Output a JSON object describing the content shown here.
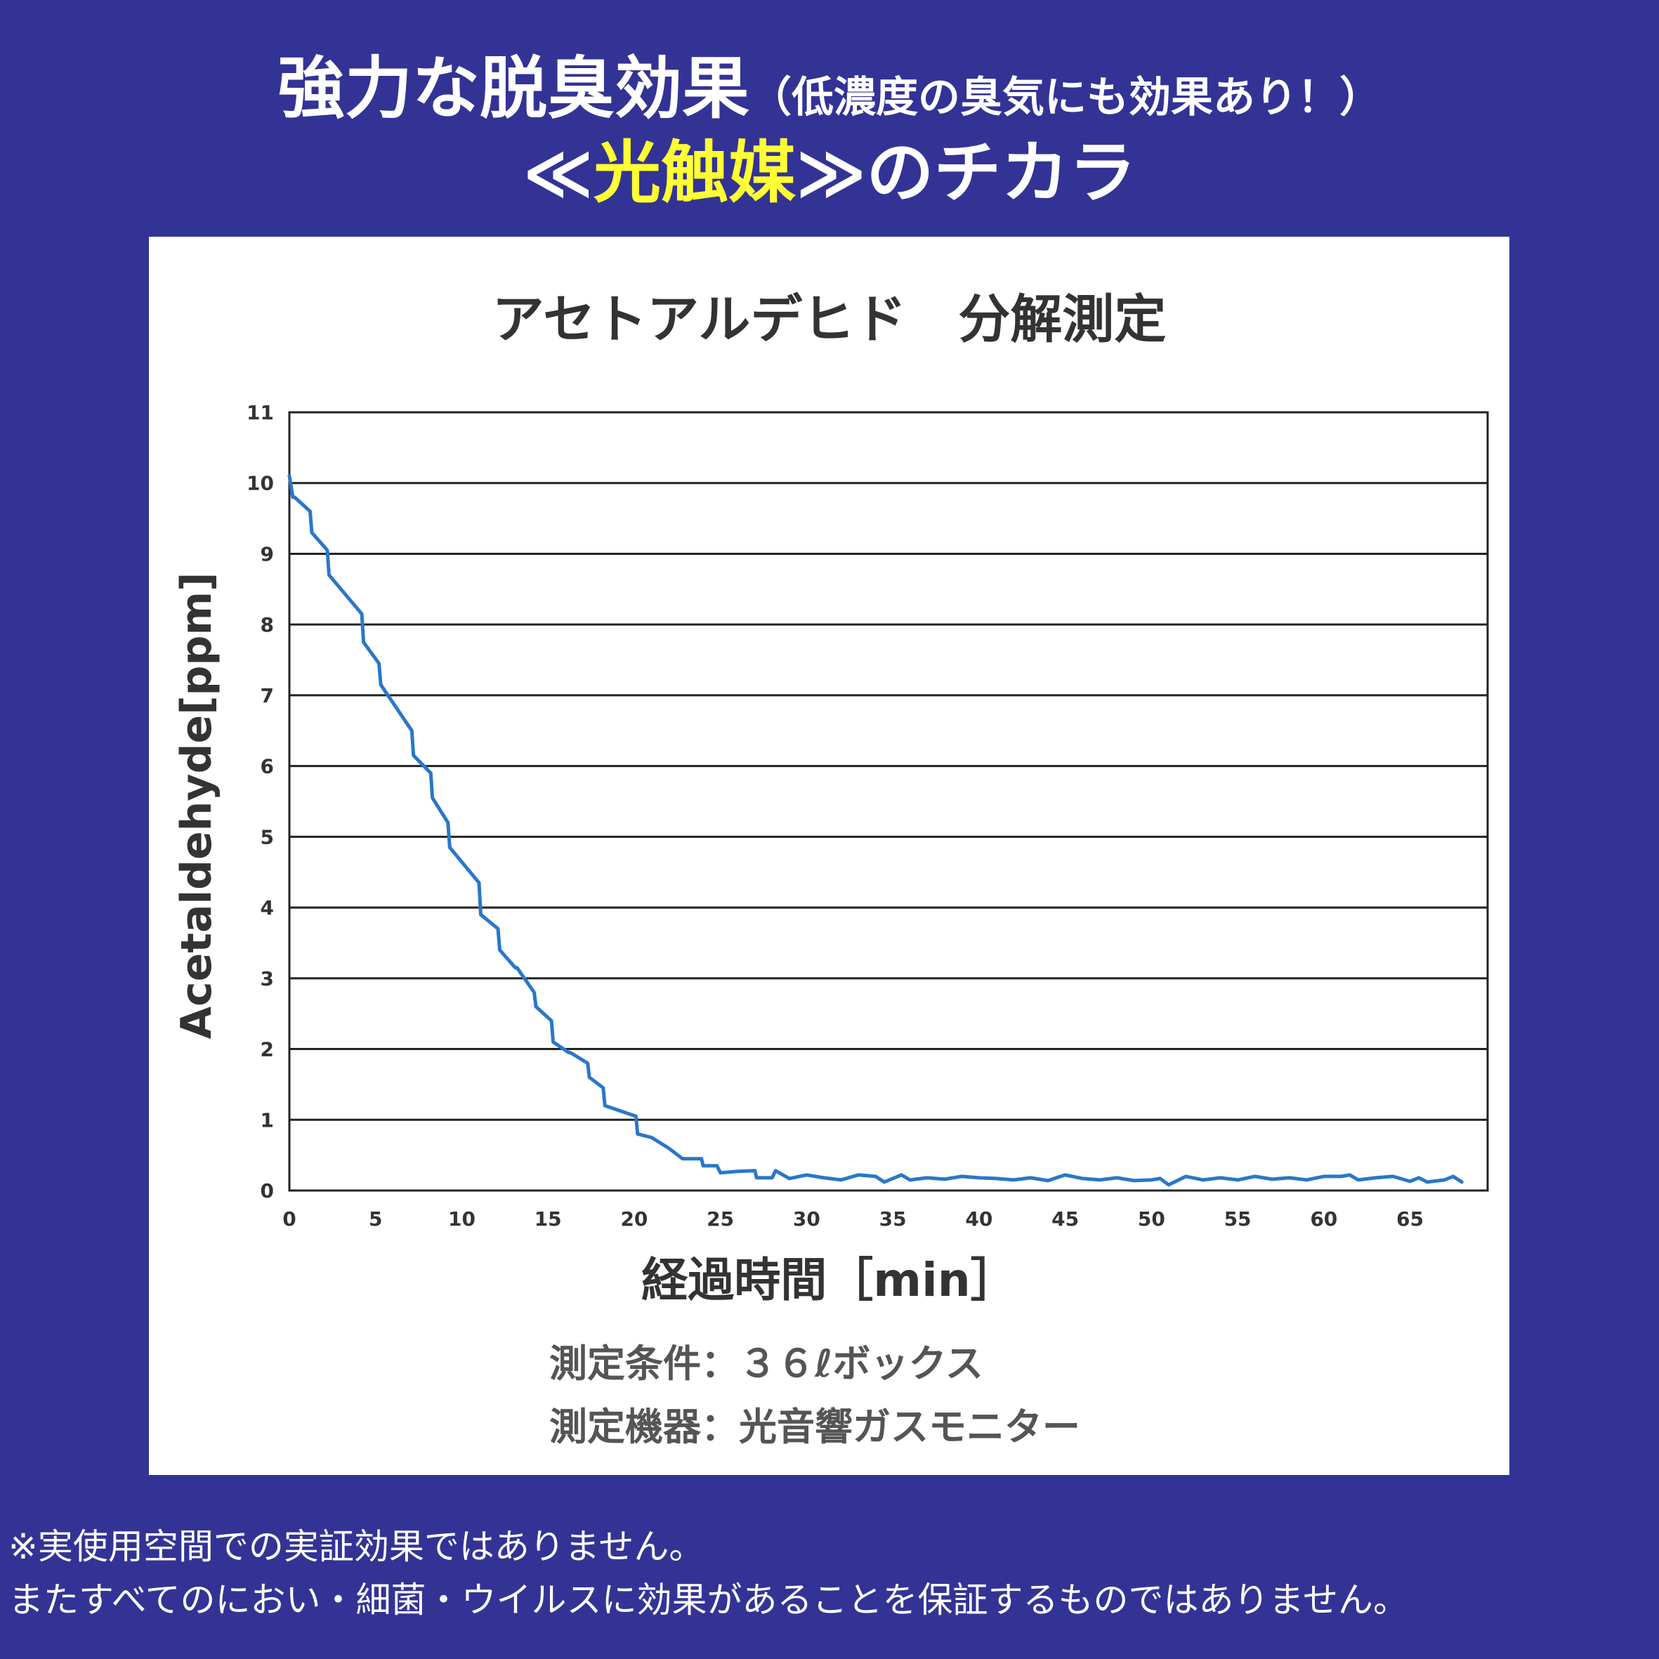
{
  "header": {
    "line1_main": "強力な脱臭効果",
    "line1_sub": "（低濃度の臭気にも効果あり！）",
    "line2_open": "≪",
    "line2_highlight": "光触媒",
    "line2_close": "≫のチカラ"
  },
  "colors": {
    "background": "#333396",
    "highlight": "#ffff33",
    "line": "#2a77c8"
  },
  "chart_data": {
    "type": "line",
    "title": "アセトアルデヒド　分解測定",
    "xlabel": "経過時間［min］",
    "ylabel": "Acetaldehyde[ppm]",
    "xlim": [
      0,
      69.5
    ],
    "ylim": [
      0,
      11
    ],
    "x_ticks": [
      "0",
      "5",
      "10",
      "15",
      "20",
      "25",
      "30",
      "35",
      "40",
      "45",
      "50",
      "55",
      "60",
      "65"
    ],
    "y_ticks": [
      "0",
      "1",
      "2",
      "3",
      "4",
      "5",
      "6",
      "7",
      "8",
      "9",
      "10",
      "11"
    ],
    "grid": "horizontal",
    "series": [
      {
        "x": [
          0,
          0.2,
          0.3,
          1.2,
          1.3,
          2.2,
          2.3,
          4.2,
          4.3,
          5.2,
          5.3,
          7.1,
          7.2,
          8.2,
          8.3,
          9.2,
          9.3,
          11.0,
          11.1,
          12.1,
          12.2,
          13.1,
          13.2,
          14.2,
          14.3,
          15.2,
          15.3,
          16.2,
          16.3,
          17.3,
          17.4,
          18.2,
          18.3,
          20.1,
          20.2,
          21.0,
          22.0,
          22.8,
          23.9,
          24.0,
          24.8,
          25.0,
          26.0,
          27.0,
          27.1,
          28.0,
          28.2,
          29.0,
          30.0,
          31.0,
          32.0,
          33.0,
          34.0,
          34.5,
          35.5,
          36.0,
          37.0,
          38.0,
          39.0,
          40.0,
          41.0,
          42.0,
          43.0,
          44.0,
          45.0,
          46.0,
          47.0,
          48.0,
          49.0,
          50.0,
          50.5,
          51.0,
          52.0,
          53.0,
          54.0,
          55.0,
          56.0,
          57.0,
          58.0,
          59.0,
          60.0,
          61.0,
          61.5,
          62.0,
          63.0,
          64.0,
          65.0,
          65.5,
          66.0,
          67.0,
          67.5,
          68.0
        ],
        "y": [
          10.1,
          9.8,
          9.8,
          9.6,
          9.3,
          9.05,
          8.7,
          8.15,
          7.75,
          7.45,
          7.15,
          6.5,
          6.15,
          5.9,
          5.55,
          5.2,
          4.85,
          4.35,
          3.9,
          3.7,
          3.4,
          3.15,
          3.15,
          2.8,
          2.6,
          2.4,
          2.1,
          1.95,
          1.95,
          1.8,
          1.6,
          1.45,
          1.2,
          1.05,
          0.8,
          0.75,
          0.6,
          0.45,
          0.45,
          0.35,
          0.35,
          0.25,
          0.27,
          0.28,
          0.18,
          0.18,
          0.28,
          0.17,
          0.22,
          0.18,
          0.15,
          0.22,
          0.2,
          0.12,
          0.22,
          0.15,
          0.18,
          0.16,
          0.2,
          0.18,
          0.17,
          0.15,
          0.18,
          0.14,
          0.22,
          0.17,
          0.15,
          0.18,
          0.14,
          0.15,
          0.17,
          0.08,
          0.2,
          0.15,
          0.18,
          0.15,
          0.2,
          0.16,
          0.18,
          0.15,
          0.2,
          0.2,
          0.22,
          0.15,
          0.18,
          0.2,
          0.13,
          0.18,
          0.12,
          0.15,
          0.2,
          0.12
        ]
      }
    ]
  },
  "conditions": {
    "line1": "測定条件：３６ℓボックス",
    "line2": "測定機器：光音響ガスモニター"
  },
  "footnotes": {
    "line1": "※実使用空間での実証効果ではありません。",
    "line2": "またすべてのにおい・細菌・ウイルスに効果があることを保証するものではありません。"
  }
}
